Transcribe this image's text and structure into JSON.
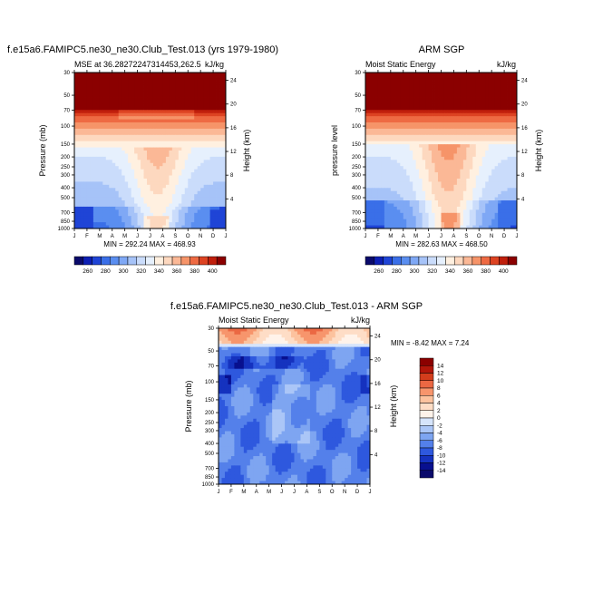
{
  "chart_data": [
    {
      "type": "heatmap",
      "title": "f.e15a6.FAMIPC5.ne30_ne30.Club_Test.013 (yrs 1979-1980)",
      "subtitle_left": "MSE at 36.28272247314453,262.5",
      "subtitle_right": "kJ/kg",
      "ylabel": "Pressure (mb)",
      "ylabel_right": "Height (km)",
      "x_ticks": [
        "J",
        "F",
        "M",
        "A",
        "M",
        "J",
        "J",
        "A",
        "S",
        "O",
        "N",
        "D",
        "J"
      ],
      "y_ticks": [
        "30",
        "50",
        "70",
        "100",
        "150",
        "200",
        "250",
        "300",
        "400",
        "500",
        "700",
        "850",
        "1000"
      ],
      "y_right_ticks": [
        "24",
        "20",
        "16",
        "12",
        "8",
        "4"
      ],
      "stats": "MIN = 292.24  MAX = 468.93",
      "colorbar_labels": [
        "260",
        "280",
        "300",
        "320",
        "340",
        "360",
        "380",
        "400"
      ],
      "ylim": [
        1000,
        30
      ],
      "field": "model",
      "min": 292.24,
      "max": 468.93
    },
    {
      "type": "heatmap",
      "title": "ARM SGP",
      "subtitle_left": "Moist Static Energy",
      "subtitle_right": "kJ/kg",
      "ylabel": "pressure level",
      "ylabel_right": "Height (km)",
      "x_ticks": [
        "J",
        "F",
        "M",
        "A",
        "M",
        "J",
        "J",
        "A",
        "S",
        "O",
        "N",
        "D",
        "J"
      ],
      "y_ticks": [
        "30",
        "50",
        "70",
        "100",
        "150",
        "200",
        "250",
        "300",
        "400",
        "500",
        "700",
        "850",
        "1000"
      ],
      "y_right_ticks": [
        "24",
        "20",
        "16",
        "12",
        "8",
        "4"
      ],
      "stats": "MIN = 282.63  MAX = 468.50",
      "colorbar_labels": [
        "260",
        "280",
        "300",
        "320",
        "340",
        "360",
        "380",
        "400"
      ],
      "ylim": [
        1000,
        30
      ],
      "field": "obs",
      "min": 282.63,
      "max": 468.5
    },
    {
      "type": "heatmap",
      "title": "f.e15a6.FAMIPC5.ne30_ne30.Club_Test.013 - ARM SGP",
      "subtitle_left": "Moist Static Energy",
      "subtitle_right": "kJ/kg",
      "ylabel": "Pressure (mb)",
      "ylabel_right": "Height (km)",
      "x_ticks": [
        "J",
        "F",
        "M",
        "A",
        "M",
        "J",
        "J",
        "A",
        "S",
        "O",
        "N",
        "D",
        "J"
      ],
      "y_ticks": [
        "30",
        "50",
        "70",
        "100",
        "150",
        "200",
        "250",
        "300",
        "400",
        "500",
        "700",
        "850",
        "1000"
      ],
      "y_right_ticks": [
        "24",
        "20",
        "16",
        "12",
        "8",
        "4"
      ],
      "stats": "MIN =  -8.42  MAX =   7.24",
      "colorbar_labels": [
        "14",
        "12",
        "10",
        "8",
        "6",
        "4",
        "2",
        "0",
        "-2",
        "-4",
        "-6",
        "-8",
        "-10",
        "-12",
        "-14"
      ],
      "ylim": [
        1000,
        30
      ],
      "field": "diff",
      "min": -8.42,
      "max": 7.24
    }
  ],
  "colors": {
    "mse_scale": [
      "#0a0a6b",
      "#0d1fb4",
      "#1f44d6",
      "#3a6fe8",
      "#5a8ef0",
      "#7fa8f5",
      "#a6c3f8",
      "#cadcfb",
      "#e6f0fd",
      "#fff0e0",
      "#fdd8bf",
      "#fbb896",
      "#f69469",
      "#ee6a43",
      "#dd4322",
      "#c01f0c",
      "#8b0000"
    ],
    "diff_scale": [
      "#8b0000",
      "#b2160a",
      "#d33d1c",
      "#eb6843",
      "#f7956c",
      "#fcc29e",
      "#feddc6",
      "#fff3ea",
      "#d6e4fb",
      "#abc6f7",
      "#7ea5f1",
      "#5480ea",
      "#2e58de",
      "#1532bf",
      "#08108f",
      "#0a0a6b"
    ]
  }
}
